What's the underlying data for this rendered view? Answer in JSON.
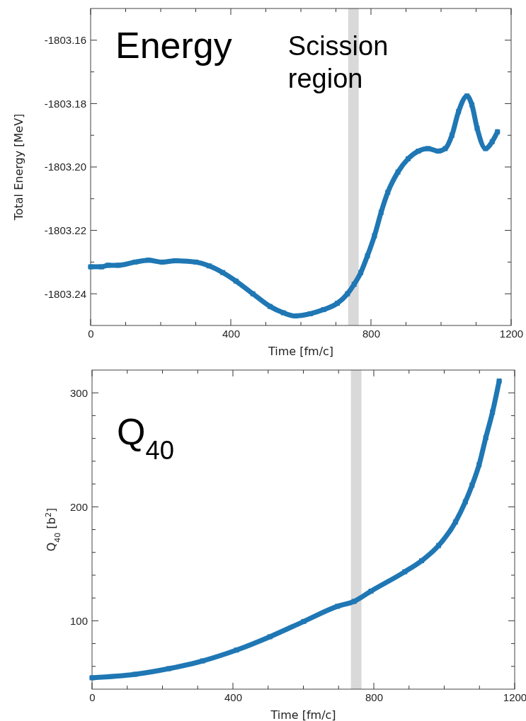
{
  "chart_data": [
    {
      "type": "line",
      "xlabel": "Time [fm/c]",
      "ylabel": "Total Energy [MeV]",
      "marker": "square",
      "annotations": [
        "Energy"
      ],
      "xlim": [
        0,
        1200
      ],
      "xticks": [
        0,
        {
          "value": 100,
          "label": null
        },
        {
          "value": 200,
          "label": null
        },
        {
          "value": 300,
          "label": null
        },
        400,
        {
          "value": 500,
          "label": null
        },
        {
          "value": 600,
          "label": null
        },
        {
          "value": 700,
          "label": null
        },
        800,
        {
          "value": 900,
          "label": null
        },
        {
          "value": 1000,
          "label": null
        },
        {
          "value": 1100,
          "label": null
        },
        1200
      ],
      "ylim": [
        -1803.25,
        -1803.15
      ],
      "yticks": [
        {
          "value": -1803.16,
          "label": "-1803.16"
        },
        {
          "value": -1803.17,
          "label": null
        },
        {
          "value": -1803.18,
          "label": "-1803.18"
        },
        {
          "value": -1803.19,
          "label": null
        },
        {
          "value": -1803.2,
          "label": "-1803.20"
        },
        {
          "value": -1803.21,
          "label": null
        },
        {
          "value": -1803.22,
          "label": "-1803.22"
        },
        {
          "value": -1803.23,
          "label": null
        },
        {
          "value": -1803.24,
          "label": "-1803.24"
        }
      ],
      "bands": [
        {
          "axis": "x",
          "from": 735,
          "to": 765,
          "color": "#d9d9d9",
          "label": "Scission region"
        }
      ],
      "series": [
        {
          "color": "#1f77b4",
          "x": [
            0,
            31,
            50,
            79,
            127,
            165,
            204,
            242,
            300,
            338,
            377,
            415,
            463,
            512,
            550,
            584,
            627,
            665,
            704,
            733,
            752,
            771,
            790,
            810,
            829,
            848,
            877,
            906,
            935,
            963,
            992,
            1012,
            1031,
            1050,
            1074,
            1088,
            1103,
            1127,
            1146,
            1161
          ],
          "values": [
            -1803.2315,
            -1803.2315,
            -1803.231,
            -1803.231,
            -1803.23,
            -1803.2294,
            -1803.23,
            -1803.2296,
            -1803.23,
            -1803.2312,
            -1803.2333,
            -1803.236,
            -1803.24,
            -1803.244,
            -1803.246,
            -1803.247,
            -1803.2463,
            -1803.245,
            -1803.243,
            -1803.24,
            -1803.237,
            -1803.2333,
            -1803.228,
            -1803.2217,
            -1803.2143,
            -1803.208,
            -1803.2016,
            -1803.1974,
            -1803.195,
            -1803.1942,
            -1803.195,
            -1803.1942,
            -1803.19,
            -1803.1825,
            -1803.1776,
            -1803.1804,
            -1803.1878,
            -1803.1942,
            -1803.192,
            -1803.1889
          ]
        }
      ]
    },
    {
      "type": "line",
      "xlabel": "Time [fm/c]",
      "ylabel": "Q$_{40}$ [b$^{2}$]",
      "marker": "square",
      "annotations": [
        "Q$_{40}$"
      ],
      "xlim": [
        0,
        1200
      ],
      "xticks": [
        0,
        {
          "value": 100,
          "label": null
        },
        {
          "value": 200,
          "label": null
        },
        {
          "value": 300,
          "label": null
        },
        400,
        {
          "value": 500,
          "label": null
        },
        {
          "value": 600,
          "label": null
        },
        {
          "value": 700,
          "label": null
        },
        800,
        {
          "value": 900,
          "label": null
        },
        {
          "value": 1000,
          "label": null
        },
        {
          "value": 1100,
          "label": null
        },
        1200
      ],
      "ylim": [
        40,
        320
      ],
      "yticks": [
        {
          "value": 60,
          "label": null
        },
        {
          "value": 80,
          "label": null
        },
        100,
        {
          "value": 120,
          "label": null
        },
        {
          "value": 140,
          "label": null
        },
        {
          "value": 160,
          "label": null
        },
        {
          "value": 180,
          "label": null
        },
        200,
        {
          "value": 220,
          "label": null
        },
        {
          "value": 240,
          "label": null
        },
        {
          "value": 260,
          "label": null
        },
        {
          "value": 280,
          "label": null
        },
        300
      ],
      "bands": [
        {
          "axis": "x",
          "from": 735,
          "to": 765,
          "color": "#d9d9d9"
        }
      ],
      "series": [
        {
          "color": "#1f77b4",
          "x": [
            0,
            122,
            218,
            314,
            410,
            505,
            601,
            697,
            744,
            792,
            888,
            936,
            984,
            1032,
            1060,
            1079,
            1099,
            1118,
            1137,
            1156
          ],
          "values": [
            50,
            53,
            58,
            64.8,
            74.3,
            86,
            99.4,
            112.7,
            117,
            126,
            143,
            152.7,
            166,
            186.7,
            204.4,
            219,
            237,
            260.7,
            283,
            310.4
          ]
        }
      ]
    }
  ]
}
